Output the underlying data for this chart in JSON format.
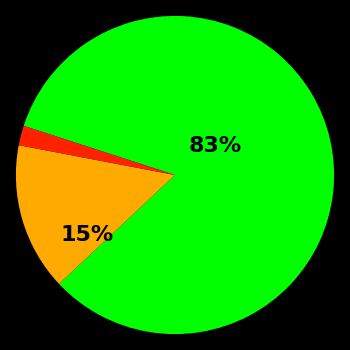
{
  "slices": [
    83,
    15,
    2
  ],
  "colors": [
    "#00ff00",
    "#ffaa00",
    "#ff2200"
  ],
  "labels": [
    "83%",
    "15%",
    ""
  ],
  "background_color": "#000000",
  "text_color": "#000000",
  "label_fontsize": 16,
  "label_fontweight": "bold",
  "startangle": 162,
  "counterclock": false
}
